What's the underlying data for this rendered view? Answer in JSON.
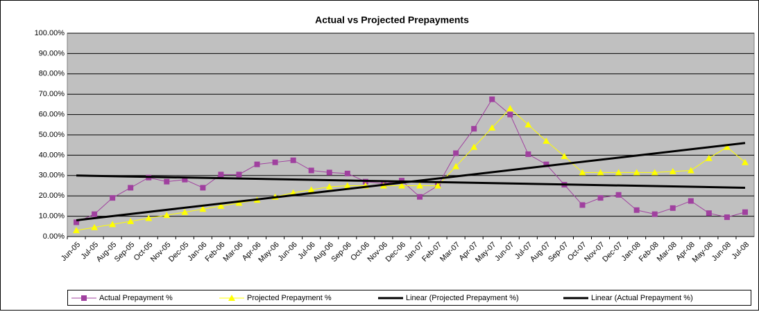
{
  "chart_data": {
    "type": "line",
    "title": "Actual vs Projected Prepayments",
    "categories": [
      "Jun-05",
      "Jul-05",
      "Aug-05",
      "Sep-05",
      "Oct-05",
      "Nov-05",
      "Dec-05",
      "Jan-06",
      "Feb-06",
      "Mar-06",
      "Apr-06",
      "May-06",
      "Jun-06",
      "Jul-06",
      "Aug-06",
      "Sep-06",
      "Oct-06",
      "Nov-06",
      "Dec-06",
      "Jan-07",
      "Feb-07",
      "Mar-07",
      "Apr-07",
      "May-07",
      "Jun-07",
      "Jul-07",
      "Aug-07",
      "Sep-07",
      "Oct-07",
      "Nov-07",
      "Dec-07",
      "Jan-08",
      "Feb-08",
      "Mar-08",
      "Apr-08",
      "May-08",
      "Jun-08",
      "Jul-08"
    ],
    "series": [
      {
        "name": "Actual Prepayment %",
        "color": "#a0409f",
        "marker": "square",
        "values": [
          7,
          11,
          19,
          24,
          29,
          27,
          28,
          24,
          30.5,
          30.5,
          35.5,
          36.5,
          37.5,
          32.5,
          31.5,
          31,
          27,
          26,
          27.5,
          19.5,
          25,
          41,
          53,
          67.5,
          60,
          40.5,
          35.5,
          25.5,
          15.5,
          19,
          20.5,
          13,
          11,
          14,
          17.5,
          11.5,
          9.5,
          12
        ]
      },
      {
        "name": "Projected Prepayment %",
        "color": "#ffff00",
        "marker": "triangle",
        "values": [
          3,
          4.5,
          6,
          7.5,
          9,
          10.5,
          12,
          13.5,
          15,
          16.5,
          18,
          19.5,
          21.5,
          23,
          24.5,
          25,
          25,
          25,
          25,
          25,
          25,
          34.5,
          44,
          53.5,
          63,
          55,
          47,
          39.5,
          31.5,
          31.5,
          31.5,
          31.5,
          31.5,
          32,
          32.5,
          38.5,
          44,
          36.5
        ]
      }
    ],
    "trendlines": [
      {
        "name": "Linear (Projected Prepayment %)",
        "color": "#000000",
        "values": [
          8,
          46
        ]
      },
      {
        "name": "Linear (Actual Prepayment %)",
        "color": "#000000",
        "values": [
          30,
          24
        ]
      }
    ],
    "ylim": [
      0,
      100
    ],
    "yticks": [
      {
        "value": 0,
        "label": "0.00%"
      },
      {
        "value": 10,
        "label": "10.00%"
      },
      {
        "value": 20,
        "label": "20.00%"
      },
      {
        "value": 30,
        "label": "30.00%"
      },
      {
        "value": 40,
        "label": "40.00%"
      },
      {
        "value": 50,
        "label": "50.00%"
      },
      {
        "value": 60,
        "label": "60.00%"
      },
      {
        "value": 70,
        "label": "70.00%"
      },
      {
        "value": 80,
        "label": "80.00%"
      },
      {
        "value": 90,
        "label": "90.00%"
      },
      {
        "value": 100,
        "label": "100.00%"
      }
    ],
    "grid": true,
    "plot_background": "#c0c0c0",
    "legend": "bottom"
  }
}
